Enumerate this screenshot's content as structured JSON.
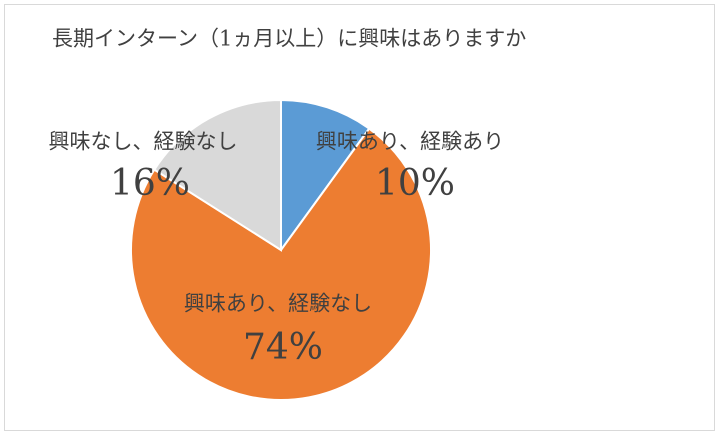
{
  "chart_data": {
    "type": "pie",
    "title": "長期インターン（1ヵ月以上）に興味はありますか",
    "categories": [
      "興味あり、経験あり",
      "興味あり、経験なし",
      "興味なし、経験なし"
    ],
    "values": [
      10,
      74,
      16
    ],
    "value_labels": [
      "10%",
      "74%",
      "16%"
    ],
    "colors": [
      "#5b9bd5",
      "#ed7d31",
      "#d9d9d9"
    ]
  }
}
